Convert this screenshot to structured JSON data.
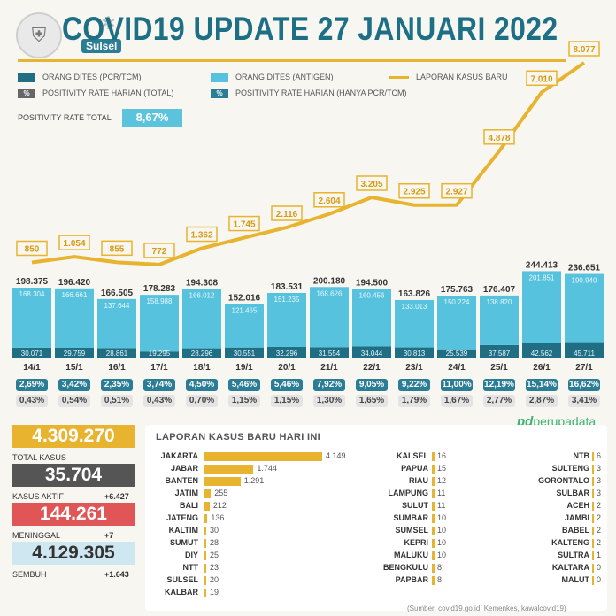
{
  "title": "COVID19 UPDATE 27 JANUARI 2022",
  "logo_text": "Sulsel",
  "legend": [
    {
      "label": "ORANG DITES (PCR/TCM)",
      "color": "#1f6e84",
      "kind": "box"
    },
    {
      "label": "ORANG DITES (ANTIGEN)",
      "color": "#57c2dd",
      "kind": "box"
    },
    {
      "label": "LAPORAN KASUS BARU",
      "color": "#e8b32e",
      "kind": "line"
    },
    {
      "label": "POSITIVITY RATE HARIAN (TOTAL)",
      "color": "#666666",
      "kind": "pct"
    },
    {
      "label": "POSITIVITY RATE HARIAN (HANYA PCR/TCM)",
      "color": "#2a7d95",
      "kind": "pct"
    }
  ],
  "legend_pct_symbol": "%",
  "positivity_total": {
    "label": "POSITIVITY RATE TOTAL",
    "value": "8,67%"
  },
  "chart_data": {
    "type": "bar",
    "categories": [
      "14/1",
      "15/1",
      "16/1",
      "17/1",
      "18/1",
      "19/1",
      "20/1",
      "21/1",
      "22/1",
      "23/1",
      "24/1",
      "25/1",
      "26/1",
      "27/1"
    ],
    "series": [
      {
        "name": "ORANG DITES (PCR/TCM)",
        "values": [
          30071,
          29759,
          28861,
          19295,
          28296,
          30551,
          32296,
          31554,
          34044,
          30813,
          25539,
          37587,
          42562,
          45711
        ],
        "labels": [
          "30.071",
          "29.759",
          "28.861",
          "19.295",
          "28.296",
          "30.551",
          "32.296",
          "31.554",
          "34.044",
          "30.813",
          "25.539",
          "37.587",
          "42.562",
          "45.711"
        ]
      },
      {
        "name": "ORANG DITES (ANTIGEN)",
        "values": [
          168304,
          166661,
          137644,
          158988,
          166012,
          121465,
          151235,
          168626,
          160456,
          133013,
          150224,
          138820,
          201851,
          190940
        ],
        "labels": [
          "168.304",
          "166.661",
          "137.644",
          "158.988",
          "166.012",
          "121.465",
          "151.235",
          "168.626",
          "160.456",
          "133.013",
          "150.224",
          "138.820",
          "201.851",
          "190.940"
        ]
      },
      {
        "name": "LAPORAN KASUS BARU",
        "values": [
          850,
          1054,
          855,
          772,
          1362,
          1745,
          2116,
          2604,
          3205,
          2925,
          2927,
          4878,
          7010,
          8077
        ],
        "labels": [
          "850",
          "1.054",
          "855",
          "772",
          "1.362",
          "1.745",
          "2.116",
          "2.604",
          "3.205",
          "2.925",
          "2.927",
          "4.878",
          "7.010",
          "8.077"
        ]
      }
    ],
    "totals": [
      "198.375",
      "196.420",
      "166.505",
      "178.283",
      "194.308",
      "152.016",
      "183.531",
      "200.180",
      "194.500",
      "163.826",
      "175.763",
      "176.407",
      "244.413",
      "236.651"
    ],
    "positivity_pcr": [
      "2,69%",
      "3,42%",
      "2,35%",
      "3,74%",
      "4,50%",
      "5,46%",
      "5,46%",
      "7,92%",
      "9,05%",
      "9,22%",
      "11,00%",
      "12,19%",
      "15,14%",
      "16,62%"
    ],
    "positivity_total": [
      "0,43%",
      "0,54%",
      "0,51%",
      "0,43%",
      "0,70%",
      "1,15%",
      "1,15%",
      "1,30%",
      "1,65%",
      "1,79%",
      "1,67%",
      "2,77%",
      "2,87%",
      "3,41%"
    ]
  },
  "brand": "perupadata",
  "brand_mark": "pd",
  "stats": [
    {
      "value": "4.309.270",
      "label": "TOTAL KASUS",
      "delta": "",
      "color": "#e8b32e"
    },
    {
      "value": "35.704",
      "label": "KASUS AKTIF",
      "delta": "+6.427",
      "color": "#555555"
    },
    {
      "value": "144.261",
      "label": "MENINGGAL",
      "delta": "+7",
      "color": "#e05656"
    },
    {
      "value": "4.129.305",
      "label": "SEMBUH",
      "delta": "+1.643",
      "color": "#cfe7f0"
    }
  ],
  "provinces_title": "LAPORAN KASUS BARU HARI INI",
  "provinces_col1": [
    {
      "name": "JAKARTA",
      "value": 4149,
      "label": "4.149"
    },
    {
      "name": "JABAR",
      "value": 1744,
      "label": "1.744"
    },
    {
      "name": "BANTEN",
      "value": 1291,
      "label": "1.291"
    },
    {
      "name": "JATIM",
      "value": 255,
      "label": "255"
    },
    {
      "name": "BALI",
      "value": 212,
      "label": "212"
    },
    {
      "name": "JATENG",
      "value": 136,
      "label": "136"
    },
    {
      "name": "KALTIM",
      "value": 30,
      "label": "30"
    },
    {
      "name": "SUMUT",
      "value": 28,
      "label": "28"
    },
    {
      "name": "DIY",
      "value": 25,
      "label": "25"
    },
    {
      "name": "NTT",
      "value": 23,
      "label": "23"
    },
    {
      "name": "SULSEL",
      "value": 20,
      "label": "20"
    },
    {
      "name": "KALBAR",
      "value": 19,
      "label": "19"
    }
  ],
  "provinces_col2": [
    {
      "name": "KALSEL",
      "value": 16,
      "label": "16"
    },
    {
      "name": "PAPUA",
      "value": 15,
      "label": "15"
    },
    {
      "name": "RIAU",
      "value": 12,
      "label": "12"
    },
    {
      "name": "LAMPUNG",
      "value": 11,
      "label": "11"
    },
    {
      "name": "SULUT",
      "value": 11,
      "label": "11"
    },
    {
      "name": "SUMBAR",
      "value": 10,
      "label": "10"
    },
    {
      "name": "SUMSEL",
      "value": 10,
      "label": "10"
    },
    {
      "name": "KEPRI",
      "value": 10,
      "label": "10"
    },
    {
      "name": "MALUKU",
      "value": 10,
      "label": "10"
    },
    {
      "name": "BENGKULU",
      "value": 8,
      "label": "8"
    },
    {
      "name": "PAPBAR",
      "value": 8,
      "label": "8"
    }
  ],
  "provinces_col3": [
    {
      "name": "NTB",
      "value": 6,
      "label": "6"
    },
    {
      "name": "SULTENG",
      "value": 3,
      "label": "3"
    },
    {
      "name": "GORONTALO",
      "value": 3,
      "label": "3"
    },
    {
      "name": "SULBAR",
      "value": 3,
      "label": "3"
    },
    {
      "name": "ACEH",
      "value": 2,
      "label": "2"
    },
    {
      "name": "JAMBI",
      "value": 2,
      "label": "2"
    },
    {
      "name": "BABEL",
      "value": 2,
      "label": "2"
    },
    {
      "name": "KALTENG",
      "value": 2,
      "label": "2"
    },
    {
      "name": "SULTRA",
      "value": 1,
      "label": "1"
    },
    {
      "name": "KALTARA",
      "value": 0,
      "label": "0"
    },
    {
      "name": "MALUT",
      "value": 0,
      "label": "0"
    }
  ],
  "source": "(Sumber: covid19.go.id, Kemenkes, kawalcovid19)"
}
